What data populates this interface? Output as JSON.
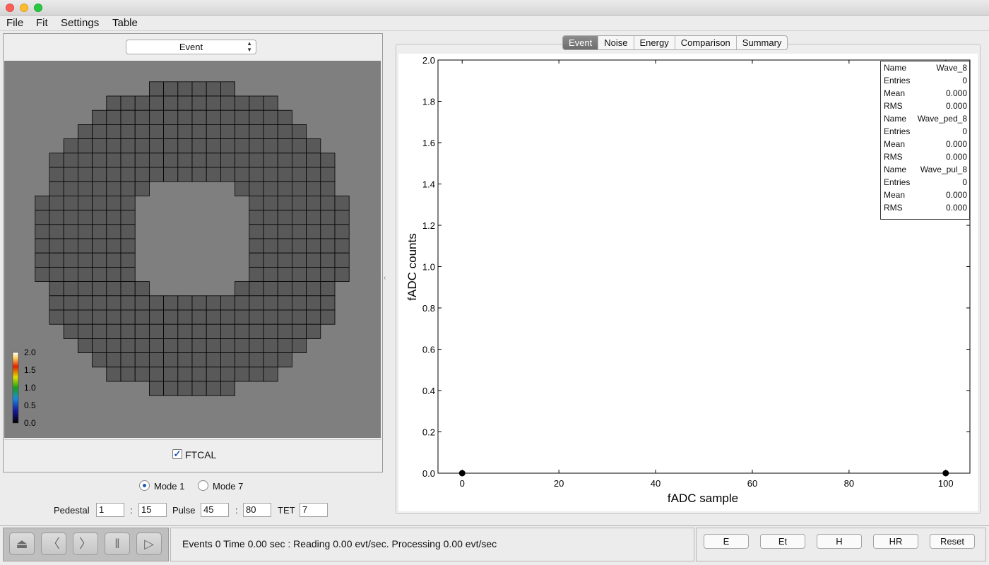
{
  "menu": [
    "File",
    "Fit",
    "Settings",
    "Table"
  ],
  "left": {
    "view_select": "Event",
    "detector": {
      "name": "FTCAL",
      "checked": true,
      "color_scale_ticks": [
        "2.0",
        "1.5",
        "1.0",
        "0.5",
        "0.0"
      ]
    },
    "modes": [
      {
        "label": "Mode 1",
        "selected": true
      },
      {
        "label": "Mode 7",
        "selected": false
      }
    ],
    "params": {
      "pedestal_label": "Pedestal",
      "pedestal_min": "1",
      "pedestal_max": "15",
      "pulse_label": "Pulse",
      "pulse_min": "45",
      "pulse_max": "80",
      "tet_label": "TET",
      "tet_value": "7",
      "sep": ":"
    }
  },
  "tabs": [
    {
      "label": "Event",
      "active": true
    },
    {
      "label": "Noise",
      "active": false
    },
    {
      "label": "Energy",
      "active": false
    },
    {
      "label": "Comparison",
      "active": false
    },
    {
      "label": "Summary",
      "active": false
    }
  ],
  "stats_box": [
    {
      "key": "Name",
      "value": "Wave_8"
    },
    {
      "key": "Entries",
      "value": "0"
    },
    {
      "key": "Mean",
      "value": "0.000"
    },
    {
      "key": "RMS",
      "value": "0.000"
    },
    {
      "key": "Name",
      "value": "Wave_ped_8"
    },
    {
      "key": "Entries",
      "value": "0"
    },
    {
      "key": "Mean",
      "value": "0.000"
    },
    {
      "key": "RMS",
      "value": "0.000"
    },
    {
      "key": "Name",
      "value": "Wave_pul_8"
    },
    {
      "key": "Entries",
      "value": "0"
    },
    {
      "key": "Mean",
      "value": "0.000"
    },
    {
      "key": "RMS",
      "value": "0.000"
    }
  ],
  "chart_data": {
    "type": "scatter",
    "xlabel": "fADC sample",
    "ylabel": "fADC counts",
    "xlim": [
      -5,
      105
    ],
    "ylim": [
      0,
      2.0
    ],
    "x_ticks": [
      0,
      20,
      40,
      60,
      80,
      100
    ],
    "y_ticks": [
      "0.0",
      "0.2",
      "0.4",
      "0.6",
      "0.8",
      "1.0",
      "1.2",
      "1.4",
      "1.6",
      "1.8",
      "2.0"
    ],
    "series": [
      {
        "points": [
          [
            0,
            0
          ],
          [
            100,
            0
          ]
        ],
        "color": "#000000"
      }
    ]
  },
  "player_buttons": [
    {
      "icon": "eject-icon",
      "glyph": "⏏"
    },
    {
      "icon": "prev-icon",
      "glyph": "〈"
    },
    {
      "icon": "next-icon",
      "glyph": "〉"
    },
    {
      "icon": "pause-icon",
      "glyph": "‖"
    },
    {
      "icon": "play-icon",
      "glyph": "▷"
    }
  ],
  "status": "Events 0  Time 0.00 sec : Reading 0.00  evt/sec. Processing 0.00 evt/sec",
  "action_buttons": [
    "E",
    "Et",
    "H",
    "HR",
    "Reset"
  ]
}
